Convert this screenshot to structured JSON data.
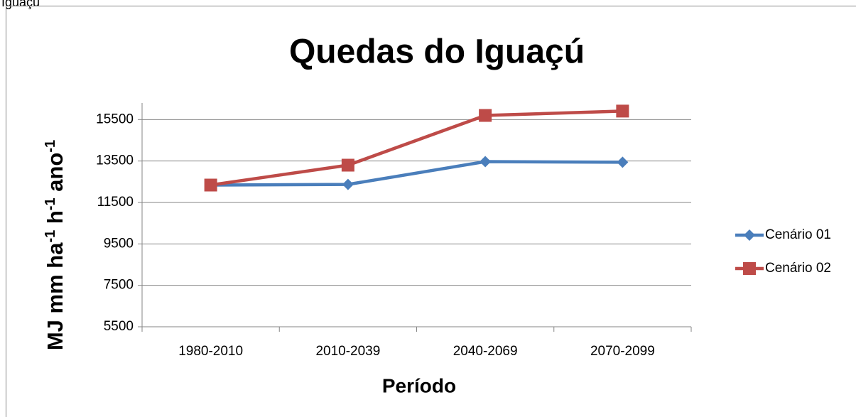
{
  "caption": "Iguaçu",
  "chart_data": {
    "type": "line",
    "title": "Quedas do Iguaçú",
    "xlabel": "Período",
    "ylabel_parts": [
      "MJ mm ha",
      "-1",
      " h",
      "-1",
      " ano",
      "-1"
    ],
    "categories": [
      "1980-2010",
      "2010-2039",
      "2040-2069",
      "2070-2099"
    ],
    "series": [
      {
        "name": "Cenário 01",
        "color": "#4a7ebb",
        "marker": "diamond",
        "values": [
          12340,
          12370,
          13470,
          13440
        ]
      },
      {
        "name": "Cenário 02",
        "color": "#be4b48",
        "marker": "square",
        "values": [
          12340,
          13300,
          15700,
          15910
        ]
      }
    ],
    "ylim": [
      5500,
      16300
    ],
    "yticks": [
      5500,
      7500,
      9500,
      11500,
      13500,
      15500
    ],
    "grid": true,
    "legend": "right"
  }
}
